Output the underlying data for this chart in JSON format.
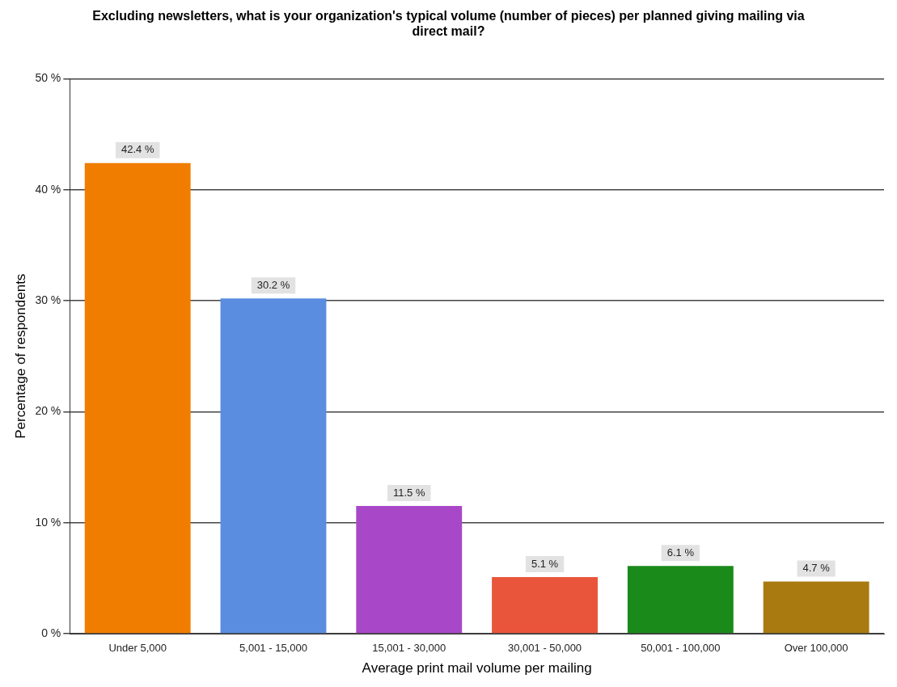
{
  "chart_data": {
    "type": "bar",
    "title": "Excluding newsletters, what is your organization's typical volume (number of pieces) per planned giving mailing via direct mail?",
    "xlabel": "Average print mail volume per mailing",
    "ylabel": "Percentage of respondents",
    "categories": [
      "Under 5,000",
      "5,001 - 15,000",
      "15,001 - 30,000",
      "30,001 - 50,000",
      "50,001 - 100,000",
      "Over 100,000"
    ],
    "values": [
      42.4,
      30.2,
      11.5,
      5.1,
      6.1,
      4.7
    ],
    "colors": [
      "#f07d00",
      "#5a8de0",
      "#a848c8",
      "#e9553a",
      "#1a8a1a",
      "#a87a10"
    ],
    "value_labels": [
      "42.4 %",
      "30.2 %",
      "11.5 %",
      "5.1 %",
      "6.1 %",
      "4.7 %"
    ],
    "ylim": [
      0,
      50
    ],
    "yticks": [
      {
        "value": 0,
        "label": "0 %"
      },
      {
        "value": 10,
        "label": "10 %"
      },
      {
        "value": 20,
        "label": "20 %"
      },
      {
        "value": 30,
        "label": "30 %"
      },
      {
        "value": 40,
        "label": "40 %"
      },
      {
        "value": 50,
        "label": "50 %"
      }
    ],
    "grid": "y",
    "legend": false
  }
}
